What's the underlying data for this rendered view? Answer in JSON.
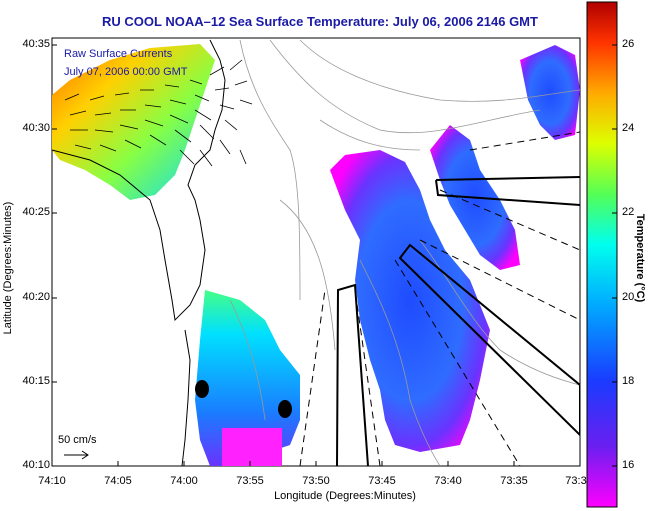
{
  "title": "RU COOL  NOAA–12  Sea Surface Temperature:  July 06, 2006 2146 GMT",
  "legend": {
    "line1": "Raw Surface Currents",
    "line2": "July 07, 2006 00:00 GMT"
  },
  "scale_label": "50 cm/s",
  "axes": {
    "xlabel": "Longitude (Degrees:Minutes)",
    "ylabel": "Latitude (Degrees:Minutes)",
    "xticks": [
      "74:10",
      "74:05",
      "74:00",
      "73:55",
      "73:50",
      "73:45",
      "73:40",
      "73:35",
      "73:3"
    ],
    "yticks": [
      "40:35",
      "40:30",
      "40:25",
      "40:20",
      "40:15",
      "40:10"
    ]
  },
  "colorbar": {
    "label": "Temperature (°C)",
    "ticks": [
      "26",
      "24",
      "22",
      "20",
      "18",
      "16"
    ]
  },
  "colors": {
    "title": "#1a1aa6",
    "land": "#ffffff",
    "coastline": "#000000"
  }
}
